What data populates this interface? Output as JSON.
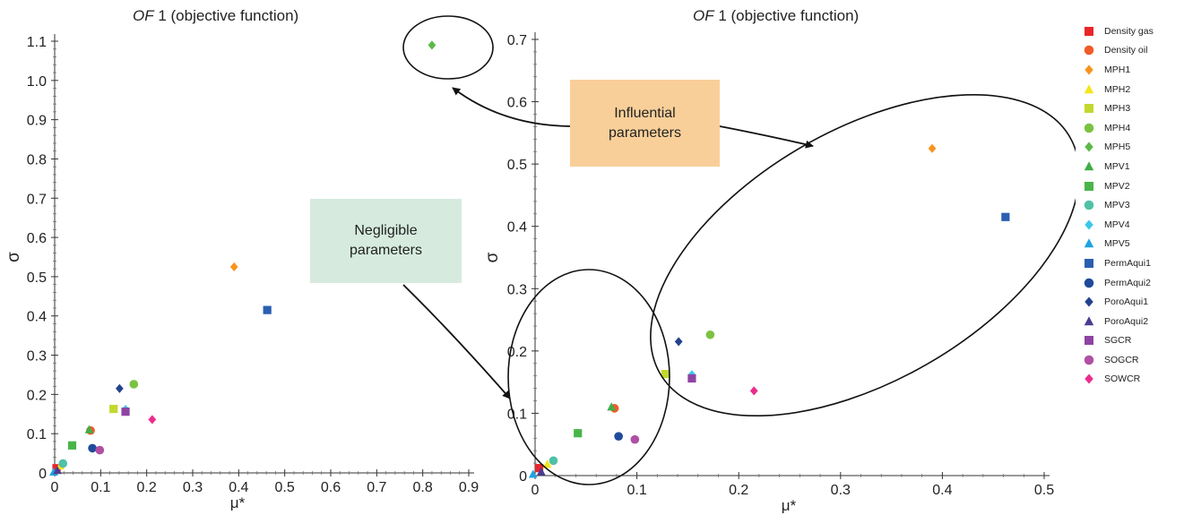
{
  "legend": [
    {
      "name": "Density gas",
      "color": "#e8262a",
      "marker": "square"
    },
    {
      "name": "Density oil",
      "color": "#f15a29",
      "marker": "circle"
    },
    {
      "name": "MPH1",
      "color": "#f7941d",
      "marker": "diamond"
    },
    {
      "name": "MPH2",
      "color": "#f4e51a",
      "marker": "triangle"
    },
    {
      "name": "MPH3",
      "color": "#c3d82e",
      "marker": "square"
    },
    {
      "name": "MPH4",
      "color": "#7cc242",
      "marker": "circle"
    },
    {
      "name": "MPH5",
      "color": "#5ab947",
      "marker": "diamond"
    },
    {
      "name": "MPV1",
      "color": "#3fae49",
      "marker": "triangle"
    },
    {
      "name": "MPV2",
      "color": "#49b548",
      "marker": "square"
    },
    {
      "name": "MPV3",
      "color": "#4fc1a6",
      "marker": "circle"
    },
    {
      "name": "MPV4",
      "color": "#3cc7e8",
      "marker": "diamond"
    },
    {
      "name": "MPV5",
      "color": "#1fa3e0",
      "marker": "triangle"
    },
    {
      "name": "PermAqui1",
      "color": "#2a5fb0",
      "marker": "square"
    },
    {
      "name": "PermAqui2",
      "color": "#204b9b",
      "marker": "circle"
    },
    {
      "name": "PoroAqui1",
      "color": "#23438f",
      "marker": "diamond"
    },
    {
      "name": "PoroAqui2",
      "color": "#4b3c92",
      "marker": "triangle"
    },
    {
      "name": "SGCR",
      "color": "#8e44a3",
      "marker": "square"
    },
    {
      "name": "SOGCR",
      "color": "#b04fa4",
      "marker": "circle"
    },
    {
      "name": "SOWCR",
      "color": "#ec2c8c",
      "marker": "diamond"
    }
  ],
  "callouts": {
    "negligible": "Negligible\nparameters",
    "influential": "Influential\nparameters"
  },
  "chart_data": [
    {
      "type": "scatter",
      "title_italic": "OF",
      "title_rest": " 1 (objective function)",
      "xlabel": "μ*",
      "ylabel": "σ",
      "xlim": [
        0,
        0.9
      ],
      "ylim": [
        0,
        1.1
      ],
      "xticks": [
        "0",
        "0.1",
        "0.2",
        "0.3",
        "0.4",
        "0.5",
        "0.6",
        "0.7",
        "0.8",
        "0.9"
      ],
      "yticks": [
        "0",
        "0.1",
        "0.2",
        "0.3",
        "0.4",
        "0.5",
        "0.6",
        "0.7",
        "0.8",
        "0.9",
        "1.0",
        "1.1"
      ],
      "series": [
        {
          "name": "Density gas",
          "x": 0.004,
          "y": 0.012
        },
        {
          "name": "Density oil",
          "x": 0.078,
          "y": 0.108
        },
        {
          "name": "MPH1",
          "x": 0.39,
          "y": 0.525
        },
        {
          "name": "MPH2",
          "x": 0.012,
          "y": 0.018
        },
        {
          "name": "MPH3",
          "x": 0.128,
          "y": 0.163
        },
        {
          "name": "MPH4",
          "x": 0.172,
          "y": 0.226
        },
        {
          "name": "MPH5",
          "x": 0.82,
          "y": 1.09
        },
        {
          "name": "MPV1",
          "x": 0.075,
          "y": 0.11
        },
        {
          "name": "MPV2",
          "x": 0.038,
          "y": 0.07
        },
        {
          "name": "MPV3",
          "x": 0.018,
          "y": 0.024
        },
        {
          "name": "MPV4",
          "x": 0.154,
          "y": 0.162
        },
        {
          "name": "MPV5",
          "x": -0.002,
          "y": 0.002
        },
        {
          "name": "PermAqui1",
          "x": 0.462,
          "y": 0.415
        },
        {
          "name": "PermAqui2",
          "x": 0.082,
          "y": 0.063
        },
        {
          "name": "PoroAqui1",
          "x": 0.141,
          "y": 0.215
        },
        {
          "name": "PoroAqui2",
          "x": 0.006,
          "y": 0.006
        },
        {
          "name": "SGCR",
          "x": 0.154,
          "y": 0.156
        },
        {
          "name": "SOGCR",
          "x": 0.098,
          "y": 0.058
        },
        {
          "name": "SOWCR",
          "x": 0.212,
          "y": 0.136
        }
      ]
    },
    {
      "type": "scatter",
      "title_italic": "OF",
      "title_rest": " 1 (objective function)",
      "xlabel": "μ*",
      "ylabel": "σ",
      "xlim": [
        0,
        0.5
      ],
      "ylim": [
        0,
        0.7
      ],
      "xticks": [
        "0",
        "0.1",
        "0.2",
        "0.3",
        "0.4",
        "0.5"
      ],
      "yticks": [
        "0",
        "0.1",
        "0.2",
        "0.3",
        "0.4",
        "0.5",
        "0.6",
        "0.7"
      ],
      "series": [
        {
          "name": "Density gas",
          "x": 0.004,
          "y": 0.012
        },
        {
          "name": "Density oil",
          "x": 0.078,
          "y": 0.108
        },
        {
          "name": "MPH1",
          "x": 0.39,
          "y": 0.525
        },
        {
          "name": "MPH2",
          "x": 0.012,
          "y": 0.018
        },
        {
          "name": "MPH3",
          "x": 0.128,
          "y": 0.163
        },
        {
          "name": "MPH4",
          "x": 0.172,
          "y": 0.226
        },
        {
          "name": "MPV1",
          "x": 0.075,
          "y": 0.11
        },
        {
          "name": "MPV2",
          "x": 0.042,
          "y": 0.068
        },
        {
          "name": "MPV3",
          "x": 0.018,
          "y": 0.024
        },
        {
          "name": "MPV4",
          "x": 0.154,
          "y": 0.162
        },
        {
          "name": "MPV5",
          "x": -0.002,
          "y": 0.002
        },
        {
          "name": "PermAqui1",
          "x": 0.462,
          "y": 0.415
        },
        {
          "name": "PermAqui2",
          "x": 0.082,
          "y": 0.063
        },
        {
          "name": "PoroAqui1",
          "x": 0.141,
          "y": 0.215
        },
        {
          "name": "PoroAqui2",
          "x": 0.006,
          "y": 0.006
        },
        {
          "name": "SGCR",
          "x": 0.154,
          "y": 0.156
        },
        {
          "name": "SOGCR",
          "x": 0.098,
          "y": 0.058
        },
        {
          "name": "SOWCR",
          "x": 0.215,
          "y": 0.136
        }
      ]
    }
  ]
}
